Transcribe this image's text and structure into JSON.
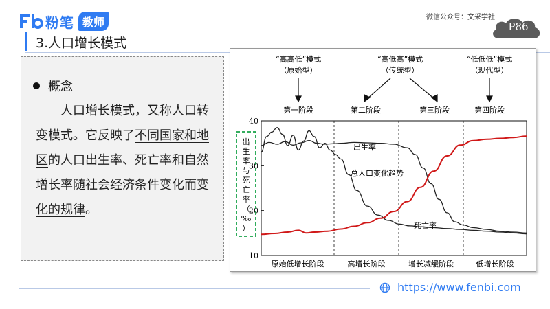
{
  "header": {
    "logo_text": "粉笔",
    "logo_badge": "教师",
    "wechat": "微信公众号：文采学社",
    "page_num": "P86"
  },
  "section_title": "3.人口增长模式",
  "concept": {
    "heading": "概念",
    "p1": "人口增长模式，又称人口转变模式。它反映了",
    "u1": "不同国家和地区",
    "p2": "的人口出生率、死亡率和自然增长率",
    "u2": "随社会经济条件变化而变化的规律",
    "p3": "。"
  },
  "footer": {
    "url": "https://www.fenbi.com"
  },
  "colors": {
    "accent": "#2f7bf2",
    "trend": "#d01818",
    "highlight_box": "#1aa34a"
  },
  "chart_data": {
    "type": "line",
    "modes": [
      {
        "label": "“高高低”模式",
        "sub": "（原始型）"
      },
      {
        "label": "“高低高”模式",
        "sub": "（传统型）"
      },
      {
        "label": "“低低低”模式",
        "sub": "（现代型）"
      }
    ],
    "stage_headers": [
      "第一阶段",
      "第二阶段",
      "第三阶段",
      "第四阶段"
    ],
    "x_stages": [
      "原始低增长阶段",
      "高增长阶段",
      "增长减缓阶段",
      "低增长阶段"
    ],
    "ylabel": "出生率与死亡率（‰）",
    "yticks": [
      10,
      20,
      30,
      40
    ],
    "ylim": [
      10,
      40
    ],
    "xlim": [
      0,
      100
    ],
    "annotations": {
      "birth": "出生率",
      "trend": "总人口变化趋势",
      "death": "死亡率"
    },
    "series": [
      {
        "name": "出生率",
        "x": [
          0,
          3,
          6,
          9,
          12,
          15,
          18,
          21,
          24,
          27,
          30,
          35,
          40,
          45,
          50,
          55,
          58,
          61,
          64,
          67,
          70,
          73,
          76,
          80,
          85,
          90,
          95,
          100
        ],
        "values": [
          34.5,
          35.2,
          34.8,
          35.4,
          34.6,
          35.1,
          35.6,
          35.0,
          34.8,
          34.9,
          35.0,
          35.2,
          35.1,
          35.0,
          34.8,
          34.0,
          32.5,
          29.5,
          26.0,
          22.5,
          19.5,
          17.5,
          16.8,
          16.2,
          15.8,
          15.4,
          15.2,
          15.0
        ]
      },
      {
        "name": "死亡率",
        "x": [
          0,
          2,
          4,
          6,
          8,
          10,
          12,
          14,
          16,
          18,
          20,
          22,
          24,
          26,
          28,
          30,
          33,
          36,
          40,
          44,
          48,
          52,
          56,
          60,
          65,
          70,
          75,
          80,
          85,
          90,
          95,
          100
        ],
        "values": [
          33.0,
          36.5,
          37.5,
          38.5,
          37.0,
          34.5,
          36.8,
          33.5,
          35.5,
          37.8,
          36.5,
          34.0,
          35.0,
          33.5,
          32.5,
          31.5,
          28.0,
          24.5,
          21.0,
          19.0,
          17.8,
          17.0,
          16.6,
          16.4,
          16.2,
          16.0,
          15.8,
          15.6,
          15.4,
          15.2,
          15.0,
          14.8
        ]
      },
      {
        "name": "总人口变化趋势",
        "x": [
          0,
          5,
          10,
          14,
          17,
          20,
          25,
          30,
          35,
          40,
          45,
          50,
          55,
          60,
          65,
          70,
          75,
          80,
          85,
          90,
          95,
          100
        ],
        "values": [
          14.7,
          14.9,
          15.2,
          15.6,
          15.0,
          15.2,
          15.4,
          15.9,
          16.5,
          17.3,
          18.3,
          19.8,
          22.0,
          25.2,
          28.8,
          32.2,
          34.6,
          35.6,
          35.9,
          36.1,
          36.3,
          36.6
        ]
      }
    ]
  }
}
